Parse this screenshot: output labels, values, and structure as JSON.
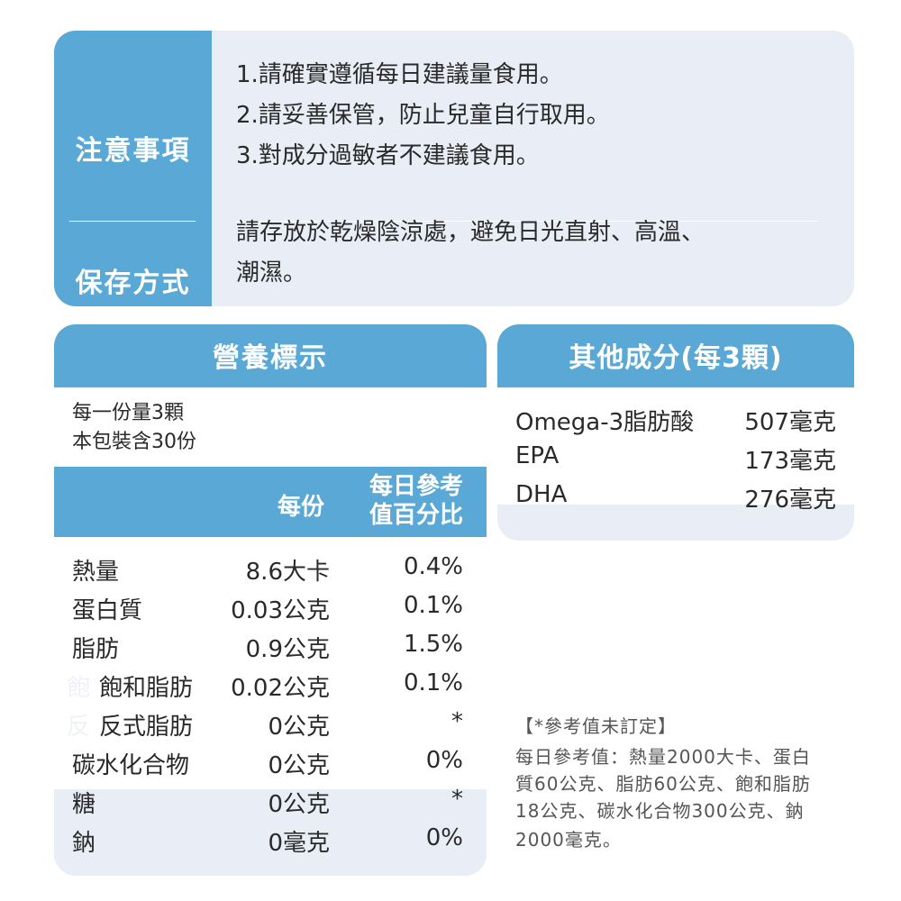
{
  "notice": {
    "cautions_label": "注意事項",
    "cautions": [
      "1.請確實遵循每日建議量食用。",
      "2.請妥善保管，防止兒童自行取用。",
      "3.對成分過敏者不建議食用。"
    ],
    "storage_label": "保存方式",
    "storage": [
      "請存放於乾燥陰涼處，避免日光直射、高溫、",
      "潮濕。"
    ]
  },
  "nutrition": {
    "title": "營養標示",
    "serving_size": "每一份量3顆",
    "servings_per_pack": "本包裝含30份",
    "col_per_serving": "每份",
    "col_daily_value": [
      "每日參考",
      "值百分比"
    ],
    "rows": [
      {
        "name": "熱量",
        "amount": "8.6大卡",
        "percent": "0.4%",
        "indent": false
      },
      {
        "name": "蛋白質",
        "amount": "0.03公克",
        "percent": "0.1%",
        "indent": false
      },
      {
        "name": "脂肪",
        "amount": "0.9公克",
        "percent": "1.5%",
        "indent": false
      },
      {
        "name": "飽和脂肪",
        "amount": "0.02公克",
        "percent": "0.1%",
        "indent": true,
        "ghost": "飽"
      },
      {
        "name": "反式脂肪",
        "amount": "0公克",
        "percent": "*",
        "indent": true,
        "ghost": "反"
      },
      {
        "name": "碳水化合物",
        "amount": "0公克",
        "percent": "0%",
        "indent": false
      },
      {
        "name": "糖",
        "amount": "0公克",
        "percent": "*",
        "indent": false
      },
      {
        "name": "鈉",
        "amount": "0毫克",
        "percent": "0%",
        "indent": false
      }
    ]
  },
  "other_ingredients": {
    "title": "其他成分(每3顆)",
    "rows": [
      {
        "name": "Omega-3脂肪酸",
        "value": "507毫克"
      },
      {
        "name": "EPA",
        "value": "173毫克"
      },
      {
        "name": "DHA",
        "value": "276毫克"
      }
    ]
  },
  "footnote": {
    "lines": [
      "【*參考值未訂定】",
      "每日參考值：熱量2000大卡、蛋白",
      "質60公克、脂肪60公克、飽和脂肪",
      "18公克、碳水化合物300公克、鈉",
      "2000毫克。"
    ]
  },
  "colors": {
    "accent_blue": "#5aa8d6",
    "card_background": "#e8edf6",
    "text": "#2a2a2a"
  }
}
